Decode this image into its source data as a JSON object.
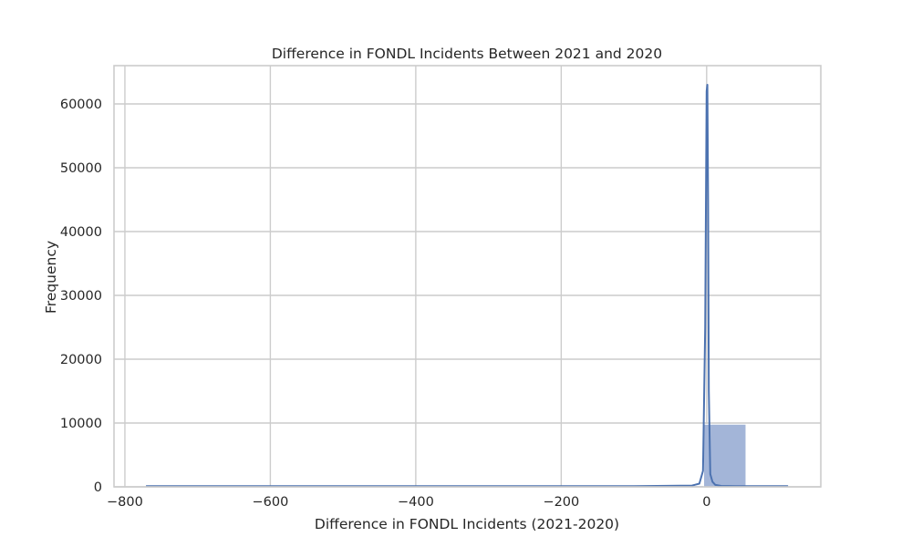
{
  "chart_data": {
    "type": "bar",
    "title": "Difference in FONDL Incidents Between 2021 and 2020",
    "xlabel": "Difference in FONDL Incidents (2021-2020)",
    "ylabel": "Frequency",
    "xlim": [
      -815,
      157
    ],
    "ylim": [
      0,
      66000
    ],
    "xticks": [
      -800,
      -600,
      -400,
      -200,
      0
    ],
    "xtick_labels": [
      "−800",
      "−600",
      "−400",
      "−200",
      "0"
    ],
    "yticks": [
      0,
      10000,
      20000,
      30000,
      40000,
      50000,
      60000
    ],
    "ytick_labels": [
      "0",
      "10000",
      "20000",
      "30000",
      "40000",
      "50000",
      "60000"
    ],
    "grid": true,
    "bars": [
      {
        "x0": -771,
        "x1": -713,
        "value": 10
      },
      {
        "x0": -713,
        "x1": -655,
        "value": 0
      },
      {
        "x0": -655,
        "x1": -597,
        "value": 0
      },
      {
        "x0": -597,
        "x1": -539,
        "value": 0
      },
      {
        "x0": -539,
        "x1": -481,
        "value": 0
      },
      {
        "x0": -481,
        "x1": -423,
        "value": 0
      },
      {
        "x0": -423,
        "x1": -365,
        "value": 0
      },
      {
        "x0": -365,
        "x1": -307,
        "value": 0
      },
      {
        "x0": -307,
        "x1": -249,
        "value": 0
      },
      {
        "x0": -249,
        "x1": -191,
        "value": 0
      },
      {
        "x0": -191,
        "x1": -133,
        "value": 0
      },
      {
        "x0": -133,
        "x1": -75,
        "value": 0
      },
      {
        "x0": -75,
        "x1": -4,
        "value": 40
      },
      {
        "x0": -4,
        "x1": 54,
        "value": 9800
      },
      {
        "x0": 54,
        "x1": 112,
        "value": 40
      }
    ],
    "kde": {
      "name": "KDE",
      "x": [
        -771,
        -100,
        -20,
        -10,
        -5,
        -2,
        0,
        1,
        2,
        3,
        5,
        8,
        12,
        20,
        40,
        112
      ],
      "y": [
        100,
        100,
        200,
        500,
        2500,
        25000,
        62000,
        63000,
        45000,
        15000,
        2000,
        800,
        300,
        150,
        100,
        100
      ]
    },
    "colors": {
      "bar_fill": "#a3b5d8",
      "bar_stroke": "#ffffff",
      "line": "#4c72b0",
      "grid": "#cccccc",
      "spine": "#cccccc",
      "text": "#262626"
    }
  }
}
